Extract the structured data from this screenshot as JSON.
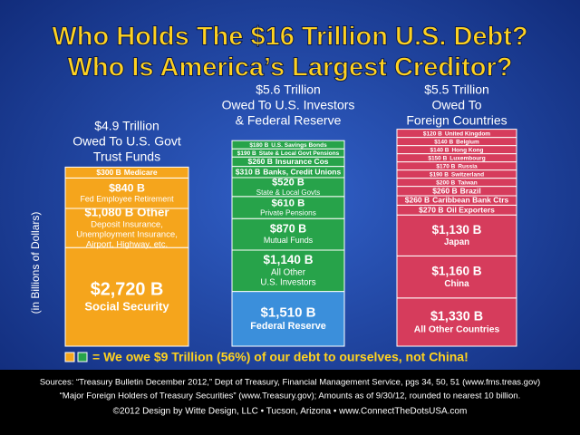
{
  "chart_data": {
    "type": "stacked-bar",
    "title": [
      "Who Holds The $16 Trillion U.S. Debt?",
      "Who Is America’s Largest Creditor?"
    ],
    "y_label": "(in Billions of Dollars)",
    "columns": [
      {
        "header": [
          "$4.9 Trillion",
          "Owed To U.S. Govt",
          "Trust Funds"
        ],
        "color": "#f5a51c",
        "segments": [
          {
            "value": 2720,
            "value_label": "$2,720 B",
            "name": [
              "Social Security"
            ]
          },
          {
            "value": 1080,
            "value_label": "$1,080 B Other",
            "name": [
              "Deposit Insurance,",
              "Unemployment Insurance,",
              "Airport, Highway, etc."
            ]
          },
          {
            "value": 840,
            "value_label": "$840 B",
            "name": [
              "Fed Employee Retirement"
            ]
          },
          {
            "value": 300,
            "value_label": "$300 B",
            "name": [
              "Medicare"
            ]
          }
        ]
      },
      {
        "header": [
          "$5.6 Trillion",
          "Owed To U.S. Investors",
          "& Federal Reserve"
        ],
        "color": "#27a34a",
        "segments": [
          {
            "value": 1510,
            "value_label": "$1,510 B",
            "name": [
              "Federal Reserve"
            ],
            "color": "#3b8fdb"
          },
          {
            "value": 1140,
            "value_label": "$1,140 B",
            "name": [
              "All Other",
              "U.S. Investors"
            ]
          },
          {
            "value": 870,
            "value_label": "$870 B",
            "name": [
              "Mutual Funds"
            ]
          },
          {
            "value": 610,
            "value_label": "$610 B",
            "name": [
              "Private Pensions"
            ]
          },
          {
            "value": 520,
            "value_label": "$520 B",
            "name": [
              "State & Local Govts"
            ]
          },
          {
            "value": 310,
            "value_label": "$310 B",
            "name": [
              "Banks, Credit Unions"
            ]
          },
          {
            "value": 260,
            "value_label": "$260 B",
            "name": [
              "Insurance Cos"
            ]
          },
          {
            "value": 190,
            "value_label": "$190 B",
            "name": [
              "State & Local Govt Pensions"
            ]
          },
          {
            "value": 180,
            "value_label": "$180 B",
            "name": [
              "U.S. Savings Bonds"
            ]
          }
        ]
      },
      {
        "header": [
          "$5.5 Trillion",
          "Owed To",
          "Foreign Countries"
        ],
        "color": "#d63c5c",
        "segments": [
          {
            "value": 1330,
            "value_label": "$1,330 B",
            "name": [
              "All Other Countries"
            ]
          },
          {
            "value": 1160,
            "value_label": "$1,160 B",
            "name": [
              "China"
            ]
          },
          {
            "value": 1130,
            "value_label": "$1,130 B",
            "name": [
              "Japan"
            ]
          },
          {
            "value": 270,
            "value_label": "$270 B",
            "name": [
              "Oil Exporters"
            ]
          },
          {
            "value": 260,
            "value_label": "$260 B",
            "name": [
              "Caribbean Bank Ctrs"
            ]
          },
          {
            "value": 260,
            "value_label": "$260 B",
            "name": [
              "Brazil"
            ]
          },
          {
            "value": 200,
            "value_label": "$200 B",
            "name": [
              "Taiwan"
            ]
          },
          {
            "value": 190,
            "value_label": "$190 B",
            "name": [
              "Switzerland"
            ]
          },
          {
            "value": 170,
            "value_label": "$170 B",
            "name": [
              "Russia"
            ]
          },
          {
            "value": 150,
            "value_label": "$150 B",
            "name": [
              "Luxembourg"
            ]
          },
          {
            "value": 140,
            "value_label": "$140 B",
            "name": [
              "Hong Kong"
            ]
          },
          {
            "value": 140,
            "value_label": "$140 B",
            "name": [
              "Belgium"
            ]
          },
          {
            "value": 120,
            "value_label": "$120 B",
            "name": [
              "United Kingdom"
            ]
          }
        ]
      }
    ],
    "legend_text": "= We owe $9 Trillion (56%) of our debt to ourselves, not China!",
    "footer": [
      "Sources: “Treasury Bulletin December 2012,” Dept of Treasury, Financial Management Service, pgs 34, 50, 51 (www.fms.treas.gov)",
      "“Major Foreign Holders of Treasury Securities” (www.Treasury.gov); Amounts as of 9/30/12, rounded to nearest 10 billion.",
      "©2012 Design by Witte Design, LLC • Tucson, Arizona • www.ConnectTheDotsUSA.com"
    ]
  }
}
